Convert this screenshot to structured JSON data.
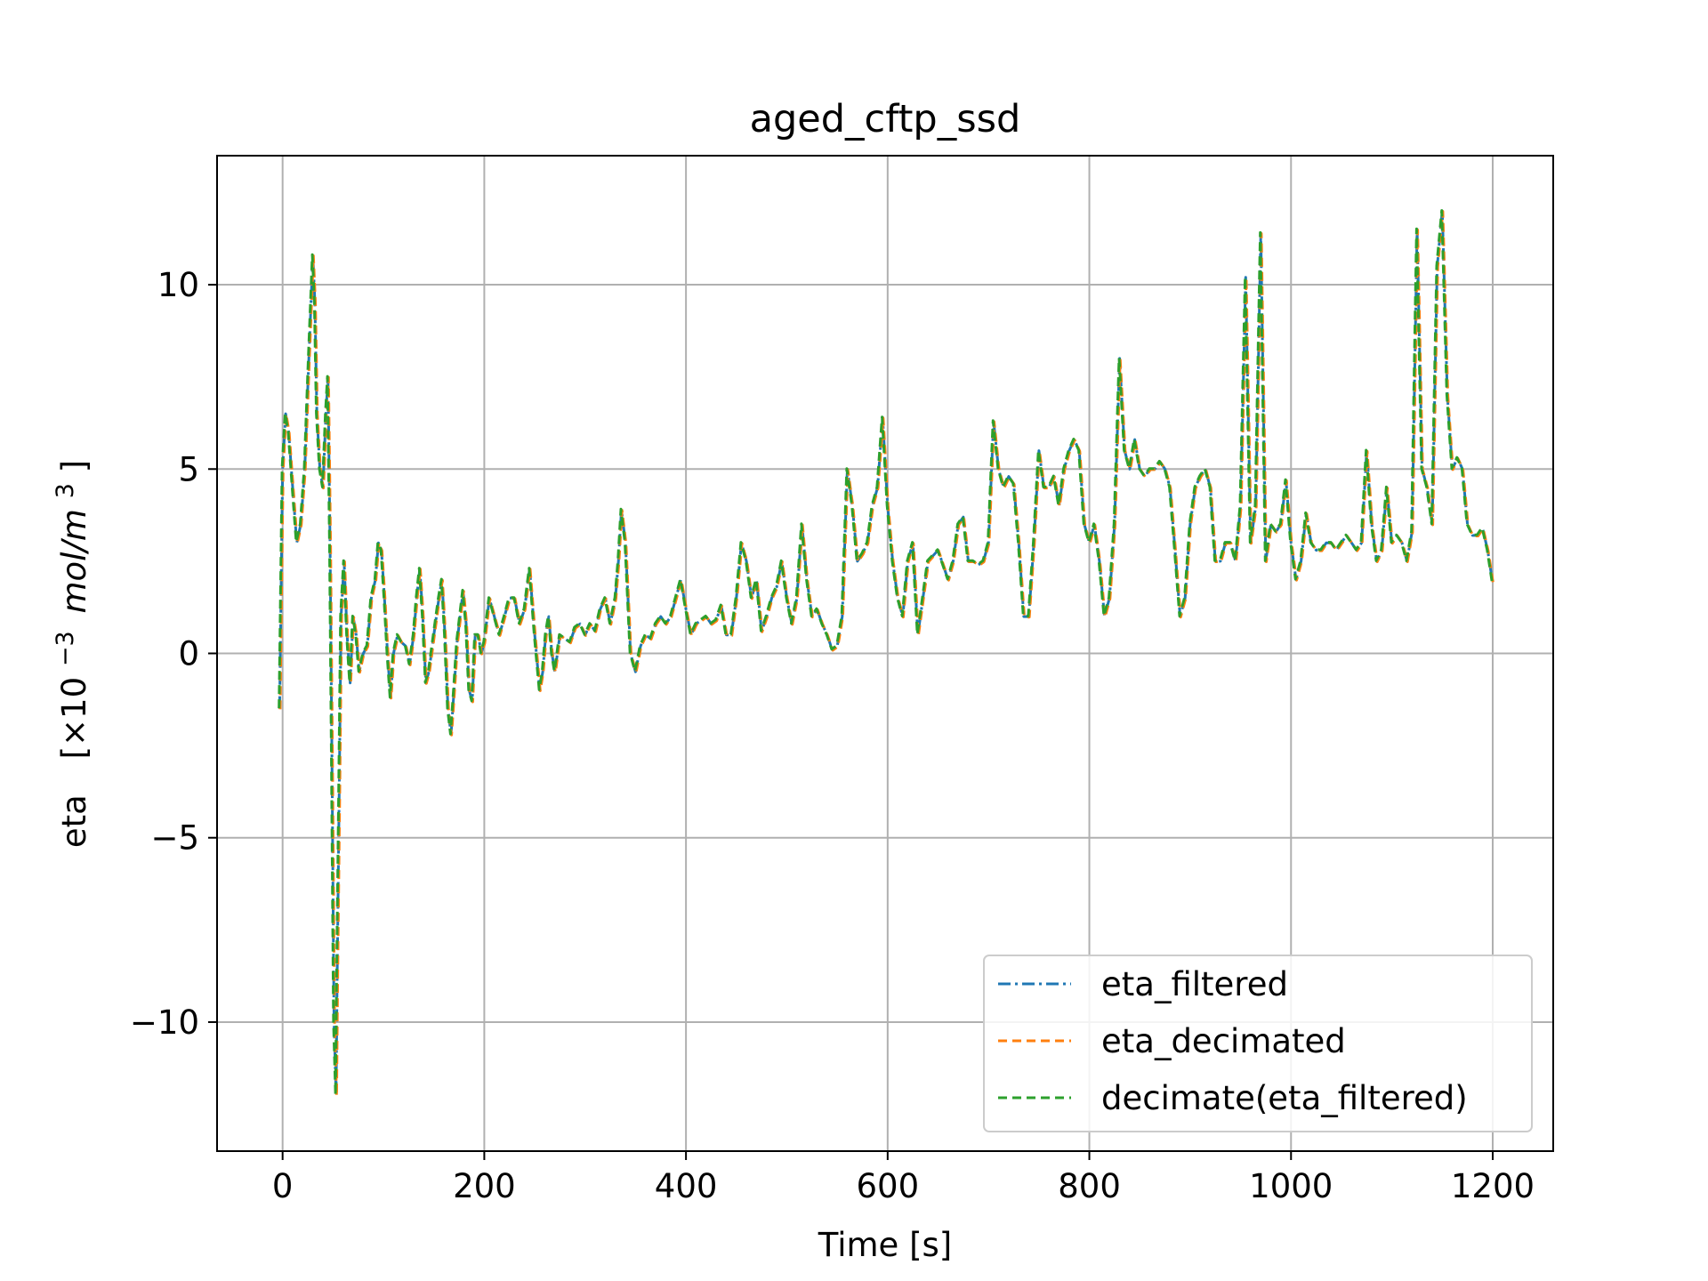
{
  "chart_data": {
    "type": "line",
    "title": "aged_cftp_ssd",
    "xlabel": "Time [s]",
    "ylabel_main": "eta",
    "ylabel_unit": "[×10",
    "ylabel_exp": "−3",
    "ylabel_unit2": "mol/m",
    "ylabel_exp2": "3",
    "ylabel_close": "]",
    "xlim": [
      -65,
      1260
    ],
    "ylim": [
      -13.5,
      13.5
    ],
    "xticks": [
      0,
      200,
      400,
      600,
      800,
      1000,
      1200
    ],
    "xtick_labels": [
      "0",
      "200",
      "400",
      "600",
      "800",
      "1000",
      "1200"
    ],
    "yticks": [
      -10,
      -5,
      0,
      5,
      10
    ],
    "ytick_labels": [
      "−10",
      "−5",
      "0",
      "5",
      "10"
    ],
    "grid": true,
    "legend_position": "lower-right",
    "series": [
      {
        "name": "eta_filtered",
        "color": "#1f77b4",
        "dash": "dashdot"
      },
      {
        "name": "eta_decimated",
        "color": "#ff7f0e",
        "dash": "dashed"
      },
      {
        "name": "decimate(eta_filtered)",
        "color": "#2ca02c",
        "dash": "dashed"
      }
    ],
    "x": [
      -3,
      0,
      3,
      6,
      10,
      14,
      18,
      22,
      26,
      30,
      32,
      34,
      37,
      40,
      43,
      45,
      47,
      49,
      51,
      53,
      54,
      56,
      58,
      61,
      64,
      67,
      70,
      73,
      76,
      80,
      84,
      88,
      92,
      95,
      98,
      101,
      104,
      107,
      110,
      114,
      118,
      122,
      126,
      130,
      133,
      136,
      139,
      142,
      145,
      150,
      155,
      158,
      161,
      164,
      167,
      170,
      173,
      176,
      179,
      182,
      185,
      188,
      191,
      194,
      197,
      200,
      205,
      210,
      215,
      220,
      225,
      230,
      235,
      240,
      245,
      250,
      255,
      258,
      261,
      264,
      267,
      270,
      275,
      280,
      285,
      290,
      295,
      300,
      305,
      310,
      315,
      320,
      325,
      330,
      333,
      336,
      340,
      345,
      350,
      355,
      360,
      365,
      370,
      375,
      380,
      385,
      390,
      395,
      400,
      405,
      410,
      415,
      420,
      425,
      430,
      435,
      440,
      445,
      450,
      455,
      460,
      465,
      470,
      475,
      480,
      485,
      490,
      495,
      500,
      505,
      510,
      515,
      520,
      525,
      530,
      535,
      540,
      545,
      550,
      555,
      560,
      565,
      570,
      575,
      580,
      585,
      590,
      595,
      600,
      605,
      610,
      615,
      620,
      625,
      630,
      640,
      650,
      660,
      665,
      670,
      675,
      680,
      685,
      690,
      695,
      700,
      705,
      710,
      715,
      720,
      725,
      730,
      735,
      740,
      745,
      750,
      755,
      760,
      765,
      770,
      775,
      780,
      785,
      790,
      795,
      800,
      805,
      810,
      815,
      820,
      825,
      830,
      835,
      840,
      845,
      850,
      855,
      860,
      865,
      870,
      875,
      880,
      885,
      890,
      895,
      900,
      905,
      910,
      915,
      920,
      925,
      930,
      935,
      940,
      945,
      950,
      955,
      960,
      965,
      970,
      975,
      980,
      985,
      990,
      995,
      1000,
      1005,
      1010,
      1015,
      1020,
      1025,
      1030,
      1035,
      1040,
      1045,
      1050,
      1055,
      1060,
      1065,
      1070,
      1075,
      1080,
      1085,
      1090,
      1095,
      1100,
      1105,
      1110,
      1115,
      1120,
      1125,
      1130,
      1135,
      1140,
      1145,
      1150,
      1155,
      1160,
      1165,
      1170,
      1175,
      1180,
      1185,
      1190,
      1195,
      1200
    ],
    "y": [
      -1.5,
      5.0,
      6.5,
      6.0,
      4.5,
      3.0,
      3.5,
      5.0,
      8.0,
      10.8,
      9.5,
      6.5,
      5.0,
      4.5,
      6.5,
      7.5,
      3.0,
      -3.0,
      -10.0,
      -12.0,
      -9.0,
      -4.0,
      1.0,
      2.5,
      0.5,
      -0.8,
      1.0,
      0.5,
      -0.5,
      0.0,
      0.2,
      1.5,
      2.0,
      3.0,
      2.8,
      1.5,
      0.0,
      -1.2,
      0.0,
      0.5,
      0.3,
      0.2,
      -0.3,
      0.5,
      1.5,
      2.3,
      1.0,
      -0.8,
      -0.5,
      0.5,
      1.5,
      2.0,
      0.5,
      -1.5,
      -2.2,
      -1.0,
      0.3,
      1.0,
      1.7,
      0.8,
      -1.0,
      -1.3,
      0.5,
      0.5,
      0.0,
      0.3,
      1.5,
      1.0,
      0.5,
      1.0,
      1.5,
      1.5,
      0.8,
      1.2,
      2.3,
      0.5,
      -1.0,
      -0.5,
      0.5,
      1.0,
      0.0,
      -0.5,
      0.5,
      0.4,
      0.3,
      0.7,
      0.8,
      0.5,
      0.8,
      0.6,
      1.2,
      1.5,
      0.8,
      1.5,
      2.5,
      3.9,
      3.0,
      0.0,
      -0.5,
      0.2,
      0.5,
      0.4,
      0.8,
      1.0,
      0.8,
      1.0,
      1.5,
      2.0,
      1.2,
      0.5,
      0.8,
      0.9,
      1.0,
      0.8,
      0.9,
      1.3,
      0.5,
      0.5,
      1.5,
      3.0,
      2.5,
      1.5,
      2.0,
      0.6,
      1.0,
      1.5,
      1.8,
      2.5,
      1.5,
      0.8,
      1.5,
      3.5,
      2.0,
      1.0,
      1.2,
      0.8,
      0.5,
      0.1,
      0.2,
      1.0,
      5.0,
      4.0,
      2.5,
      2.7,
      3.0,
      4.0,
      4.5,
      6.4,
      4.0,
      2.5,
      1.5,
      1.0,
      2.5,
      3.0,
      0.5,
      2.5,
      2.8,
      2.0,
      2.5,
      3.5,
      3.7,
      2.5,
      2.5,
      2.4,
      2.5,
      3.0,
      6.3,
      5.0,
      4.5,
      4.8,
      4.6,
      3.0,
      1.0,
      1.0,
      3.0,
      5.5,
      4.5,
      4.5,
      4.8,
      4.0,
      5.0,
      5.5,
      5.8,
      5.5,
      3.5,
      3.0,
      3.5,
      2.5,
      1.0,
      1.5,
      3.5,
      8.0,
      5.5,
      5.0,
      5.8,
      5.0,
      4.8,
      5.0,
      5.0,
      5.2,
      5.0,
      4.5,
      2.8,
      1.0,
      1.5,
      3.5,
      4.5,
      4.8,
      5.0,
      4.5,
      2.5,
      2.5,
      3.0,
      3.0,
      2.5,
      4.0,
      10.2,
      3.0,
      4.0,
      11.4,
      2.5,
      3.5,
      3.3,
      3.5,
      4.7,
      3.0,
      2.0,
      2.5,
      3.8,
      3.0,
      2.8,
      2.8,
      3.0,
      3.0,
      2.8,
      3.0,
      3.2,
      3.0,
      2.8,
      3.0,
      5.5,
      3.5,
      2.5,
      2.8,
      4.5,
      3.0,
      3.2,
      3.0,
      2.5,
      3.3,
      11.5,
      5.0,
      4.5,
      3.5,
      10.5,
      12.0,
      7.0,
      5.0,
      5.3,
      5.0,
      3.5,
      3.2,
      3.2,
      3.4,
      2.8,
      1.9
    ]
  }
}
